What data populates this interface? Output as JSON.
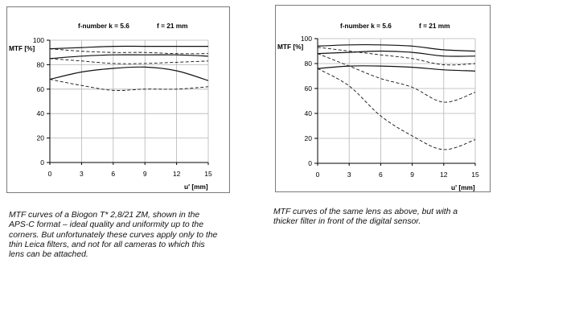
{
  "charts": [
    {
      "caption": "MTF curves of a Biogon T* 2,8/21 ZM, shown in the APS-C format – ideal quality and uniformity up to the corners. But unfortunately these curves apply only to the thin Leica filters, and not for all cameras to which this lens can be attached."
    },
    {
      "caption": "MTF curves of the same lens as above, but with a thicker filter in front of the digital sensor."
    }
  ],
  "chart_data": [
    {
      "type": "line",
      "header_fnumber": "f-number  k = 5.6",
      "header_focal": "f = 21 mm",
      "xlabel": "u' [mm]",
      "ylabel": "MTF [%]",
      "xlim": [
        0,
        15
      ],
      "ylim": [
        0,
        100
      ],
      "xticks": [
        "0",
        "3",
        "6",
        "9",
        "12",
        "15"
      ],
      "yticks": [
        "0",
        "20",
        "40",
        "60",
        "80",
        "100"
      ],
      "grid": true,
      "series": [
        {
          "style": "solid",
          "x": [
            0,
            3,
            6,
            9,
            12,
            15
          ],
          "values": [
            93,
            94,
            95,
            95,
            95,
            95
          ]
        },
        {
          "style": "dashed",
          "x": [
            0,
            3,
            6,
            9,
            12,
            15
          ],
          "values": [
            93,
            91,
            90,
            90,
            89,
            89
          ]
        },
        {
          "style": "solid",
          "x": [
            0,
            3,
            6,
            9,
            12,
            15
          ],
          "values": [
            85,
            87,
            88,
            88,
            88,
            87
          ]
        },
        {
          "style": "dashed",
          "x": [
            0,
            3,
            6,
            9,
            12,
            15
          ],
          "values": [
            85,
            83,
            81,
            81,
            82,
            83
          ]
        },
        {
          "style": "solid",
          "x": [
            0,
            3,
            6,
            9,
            12,
            15
          ],
          "values": [
            68,
            74,
            77,
            78,
            75,
            67
          ]
        },
        {
          "style": "dashed",
          "x": [
            0,
            3,
            6,
            9,
            12,
            15
          ],
          "values": [
            68,
            63,
            59,
            60,
            60,
            62
          ]
        }
      ]
    },
    {
      "type": "line",
      "header_fnumber": "f-number  k = 5.6",
      "header_focal": "f = 21 mm",
      "xlabel": "u' [mm]",
      "ylabel": "MTF [%]",
      "xlim": [
        0,
        15
      ],
      "ylim": [
        0,
        100
      ],
      "xticks": [
        "0",
        "3",
        "6",
        "9",
        "12",
        "15"
      ],
      "yticks": [
        "0",
        "20",
        "40",
        "60",
        "80",
        "100"
      ],
      "grid": true,
      "series": [
        {
          "style": "solid",
          "x": [
            0,
            3,
            6,
            9,
            12,
            15
          ],
          "values": [
            94,
            95,
            95,
            94,
            91,
            90
          ]
        },
        {
          "style": "solid",
          "x": [
            0,
            3,
            6,
            9,
            12,
            15
          ],
          "values": [
            88,
            89,
            90,
            89,
            86,
            86
          ]
        },
        {
          "style": "solid",
          "x": [
            0,
            3,
            6,
            9,
            12,
            15
          ],
          "values": [
            76,
            78,
            78,
            77,
            75,
            74
          ]
        },
        {
          "style": "dashed",
          "x": [
            0,
            3,
            6,
            9,
            12,
            15
          ],
          "values": [
            93,
            90,
            87,
            84,
            79,
            80
          ]
        },
        {
          "style": "dashed",
          "x": [
            0,
            3,
            6,
            9,
            12,
            15
          ],
          "values": [
            88,
            78,
            68,
            61,
            49,
            57
          ]
        },
        {
          "style": "dashed",
          "x": [
            0,
            3,
            6,
            9,
            12,
            15
          ],
          "values": [
            76,
            62,
            38,
            22,
            11,
            19
          ]
        }
      ]
    }
  ]
}
